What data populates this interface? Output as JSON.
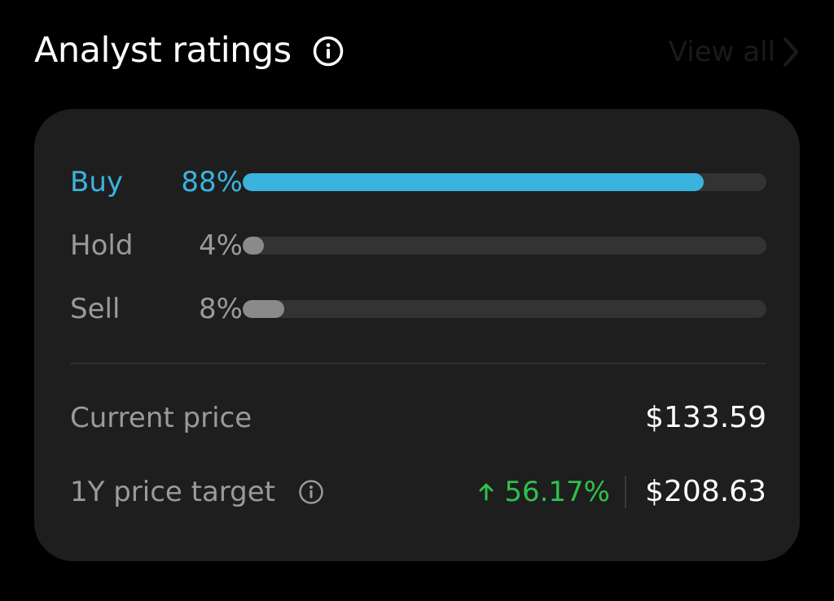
{
  "header": {
    "title": "Analyst ratings",
    "info_icon": "info-circle-icon",
    "view_all_label": "View all",
    "view_all_icon": "chevron-right-icon"
  },
  "ratings": {
    "buy": {
      "label": "Buy",
      "percent_text": "88%",
      "value": 88,
      "color": "#3bb3df"
    },
    "hold": {
      "label": "Hold",
      "percent_text": "4%",
      "value": 4,
      "color": "#8a8a8a"
    },
    "sell": {
      "label": "Sell",
      "percent_text": "8%",
      "value": 8,
      "color": "#8a8a8a"
    }
  },
  "track_color": "#333333",
  "prices": {
    "current": {
      "label": "Current price",
      "value": "$133.59"
    },
    "target": {
      "label": "1Y price target",
      "info_icon": "info-circle-icon",
      "change": "56.17%",
      "change_icon": "arrow-up-icon",
      "change_color": "#2fc14b",
      "value": "$208.63"
    }
  }
}
